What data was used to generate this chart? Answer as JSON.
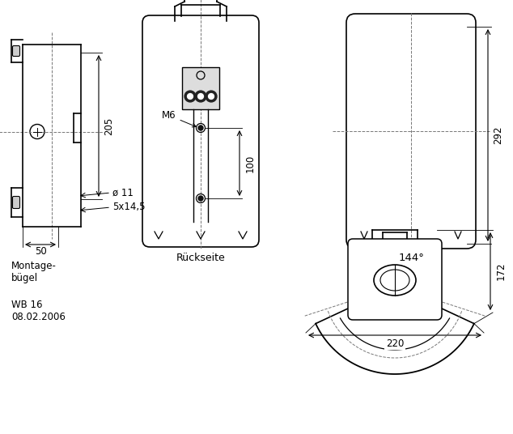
{
  "bg_color": "#ffffff",
  "line_color": "#000000",
  "dash_color": "#777777",
  "labels": {
    "dim_205": "205",
    "dim_292": "292",
    "dim_100": "100",
    "dim_50": "50",
    "dim_144": "144°",
    "dim_172": "172",
    "dim_220": "220",
    "dim_m6": "M6",
    "dim_phi11": "ø 11",
    "dim_5x14": "5x14,5",
    "label_rueck": "Rückseite",
    "label_mont": "Montage-\nbügel",
    "label_wb": "WB 16\n08.02.2006"
  },
  "font_size": 8.5
}
